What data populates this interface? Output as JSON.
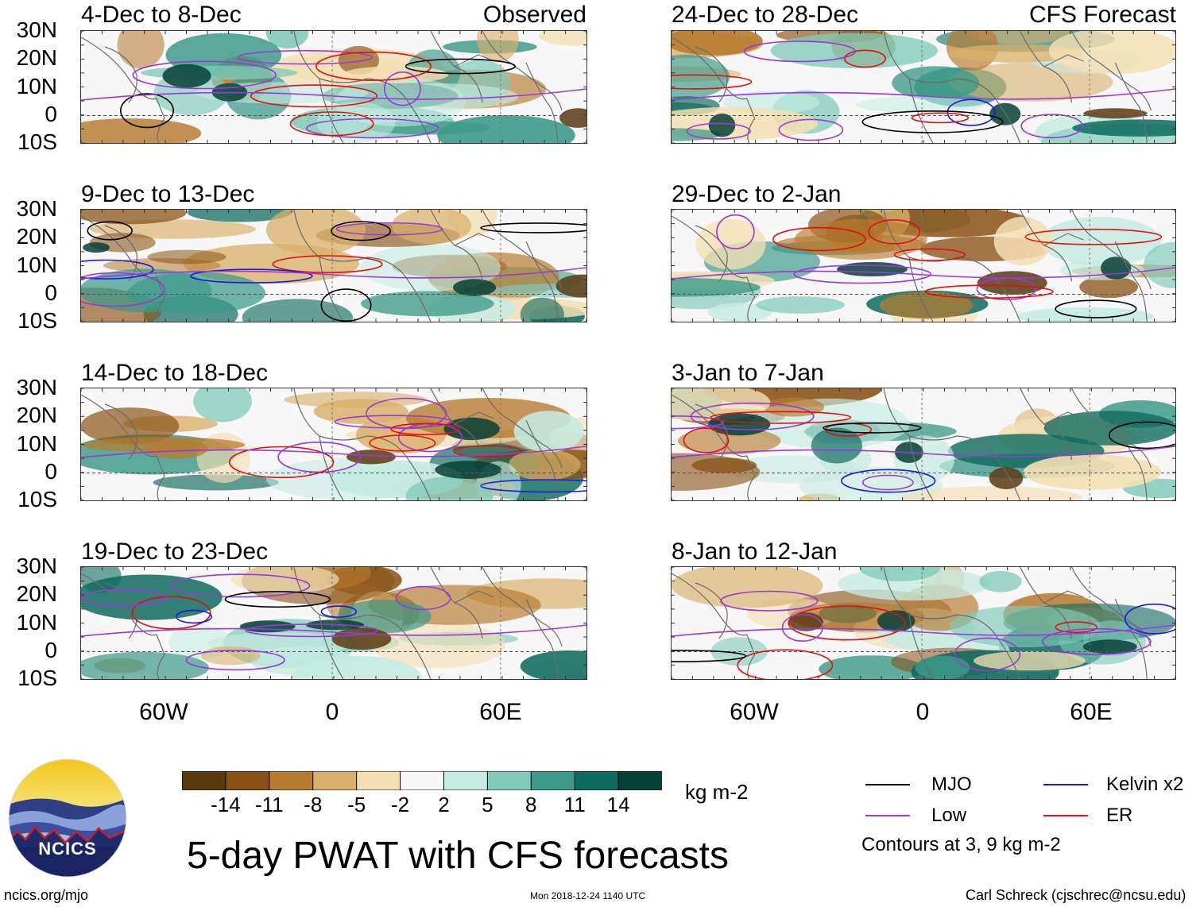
{
  "panels": [
    {
      "id": "p1",
      "title": "4-Dec to 8-Dec",
      "tag": "Observed",
      "seed": 1
    },
    {
      "id": "p2",
      "title": "24-Dec to 28-Dec",
      "tag": "CFS Forecast",
      "seed": 2
    },
    {
      "id": "p3",
      "title": "9-Dec to 13-Dec",
      "tag": "",
      "seed": 3
    },
    {
      "id": "p4",
      "title": "29-Dec to 2-Jan",
      "tag": "",
      "seed": 4
    },
    {
      "id": "p5",
      "title": "14-Dec to 18-Dec",
      "tag": "",
      "seed": 5
    },
    {
      "id": "p6",
      "title": "3-Jan to 7-Jan",
      "tag": "",
      "seed": 6
    },
    {
      "id": "p7",
      "title": "19-Dec to 23-Dec",
      "tag": "",
      "seed": 7
    },
    {
      "id": "p8",
      "title": "8-Jan to 12-Jan",
      "tag": "",
      "seed": 8
    }
  ],
  "lat_labels": [
    "30N",
    "20N",
    "10N",
    "0",
    "10S"
  ],
  "lon_labels": [
    "60W",
    "0",
    "60E"
  ],
  "colorbar": {
    "labels": [
      "-14",
      "-11",
      "-8",
      "-5",
      "-2",
      "2",
      "5",
      "8",
      "11",
      "14"
    ],
    "colors": [
      "#5a3a10",
      "#8a5215",
      "#b77b30",
      "#d9b06a",
      "#f3dfb3",
      "#f7f7f7",
      "#c5ebe2",
      "#7fcab9",
      "#3d9a89",
      "#0f6b5e",
      "#063f36"
    ],
    "units": "kg m-2"
  },
  "legend": {
    "items": [
      {
        "label": "MJO",
        "color": "#000000"
      },
      {
        "label": "Kelvin x2",
        "color": "#1a1adb"
      },
      {
        "label": "Low",
        "color": "#9a3ad6"
      },
      {
        "label": "ER",
        "color": "#e01010"
      }
    ],
    "note": "Contours at 3, 9 kg m-2"
  },
  "title": "5-day PWAT with CFS forecasts",
  "logo_text": "NCICS",
  "footer": {
    "left": "ncics.org/mjo",
    "center": "Mon 2018-12-24 1140 UTC",
    "right": "Carl Schreck (cjschrec@ncsu.edu)"
  }
}
